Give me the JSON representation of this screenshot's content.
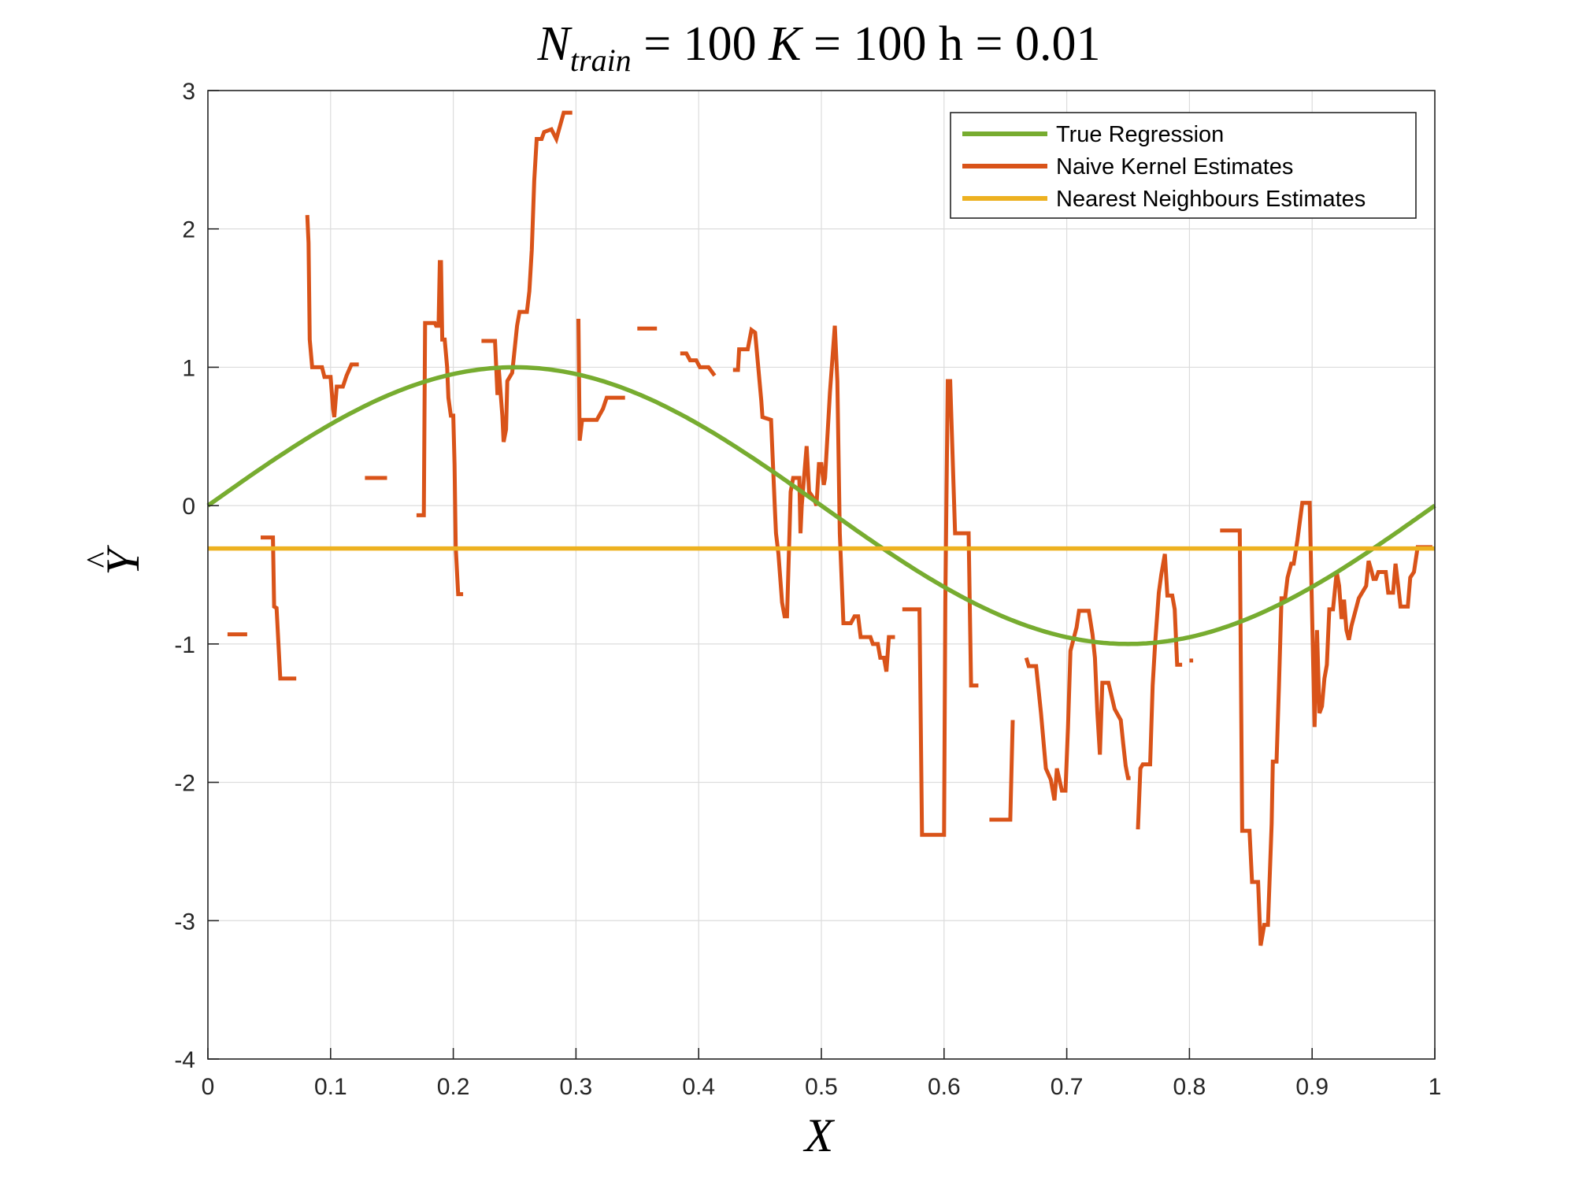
{
  "chart_data": {
    "type": "line",
    "title": {
      "N": "N",
      "sub": "train",
      "eq1": " = 100 ",
      "K": "K",
      "eq2": " = 100 h = 0.01"
    },
    "xlabel": "X",
    "ylabel": {
      "base": "Y",
      "accent": "^"
    },
    "xlim": [
      0,
      1
    ],
    "ylim": [
      -4,
      3
    ],
    "grid": true,
    "legend_position": "top-right",
    "xticks": [
      0,
      0.1,
      0.2,
      0.3,
      0.4,
      0.5,
      0.6,
      0.7,
      0.8,
      0.9,
      1
    ],
    "xtick_labels": [
      "0",
      "0.1",
      "0.2",
      "0.3",
      "0.4",
      "0.5",
      "0.6",
      "0.7",
      "0.8",
      "0.9",
      "1"
    ],
    "yticks": [
      -4,
      -3,
      -2,
      -1,
      0,
      1,
      2,
      3
    ],
    "ytick_labels": [
      "-4",
      "-3",
      "-2",
      "-1",
      "0",
      "1",
      "2",
      "3"
    ],
    "series": [
      {
        "name": "True Regression",
        "color": "#77AC30",
        "function": "sin(2*pi*x)",
        "x_range": [
          0,
          1
        ]
      },
      {
        "name": "Naive Kernel Estimates",
        "color": "#D95319",
        "segments": [
          [
            [
              0.016,
              -0.93
            ],
            [
              0.032,
              -0.93
            ]
          ],
          [
            [
              0.043,
              -0.23
            ],
            [
              0.053,
              -0.23
            ],
            [
              0.054,
              -0.73
            ],
            [
              0.056,
              -0.74
            ],
            [
              0.059,
              -1.25
            ],
            [
              0.072,
              -1.25
            ]
          ],
          [
            [
              0.081,
              2.1
            ],
            [
              0.082,
              1.9
            ],
            [
              0.083,
              1.2
            ],
            [
              0.085,
              1.0
            ],
            [
              0.093,
              1.0
            ],
            [
              0.095,
              0.93
            ],
            [
              0.1,
              0.93
            ],
            [
              0.102,
              0.7
            ],
            [
              0.103,
              0.64
            ],
            [
              0.105,
              0.86
            ],
            [
              0.11,
              0.86
            ],
            [
              0.113,
              0.94
            ],
            [
              0.117,
              1.02
            ],
            [
              0.123,
              1.02
            ]
          ],
          [
            [
              0.128,
              0.2
            ],
            [
              0.146,
              0.2
            ]
          ],
          [
            [
              0.17,
              -0.07
            ],
            [
              0.176,
              -0.07
            ],
            [
              0.177,
              1.32
            ],
            [
              0.185,
              1.32
            ],
            [
              0.186,
              1.3
            ],
            [
              0.188,
              1.3
            ],
            [
              0.189,
              1.76
            ],
            [
              0.19,
              1.76
            ],
            [
              0.191,
              1.2
            ],
            [
              0.193,
              1.2
            ],
            [
              0.195,
              1.0
            ],
            [
              0.196,
              0.78
            ],
            [
              0.198,
              0.65
            ],
            [
              0.2,
              0.65
            ],
            [
              0.201,
              0.3
            ],
            [
              0.202,
              -0.3
            ],
            [
              0.204,
              -0.64
            ],
            [
              0.208,
              -0.64
            ]
          ],
          [
            [
              0.223,
              1.19
            ],
            [
              0.234,
              1.19
            ],
            [
              0.236,
              0.8
            ],
            [
              0.237,
              1.0
            ],
            [
              0.24,
              0.65
            ],
            [
              0.241,
              0.46
            ],
            [
              0.243,
              0.55
            ],
            [
              0.244,
              0.9
            ],
            [
              0.248,
              0.96
            ],
            [
              0.252,
              1.3
            ],
            [
              0.254,
              1.4
            ],
            [
              0.26,
              1.4
            ],
            [
              0.262,
              1.55
            ],
            [
              0.264,
              1.85
            ],
            [
              0.266,
              2.35
            ],
            [
              0.268,
              2.65
            ],
            [
              0.272,
              2.65
            ],
            [
              0.274,
              2.7
            ],
            [
              0.28,
              2.72
            ],
            [
              0.284,
              2.65
            ],
            [
              0.29,
              2.84
            ],
            [
              0.297,
              2.84
            ]
          ],
          [
            [
              0.302,
              1.35
            ],
            [
              0.303,
              0.47
            ],
            [
              0.305,
              0.62
            ],
            [
              0.317,
              0.62
            ],
            [
              0.322,
              0.7
            ],
            [
              0.325,
              0.78
            ],
            [
              0.34,
              0.78
            ]
          ],
          [
            [
              0.35,
              1.28
            ],
            [
              0.366,
              1.28
            ]
          ],
          [
            [
              0.385,
              1.1
            ],
            [
              0.39,
              1.1
            ],
            [
              0.393,
              1.05
            ],
            [
              0.398,
              1.05
            ],
            [
              0.401,
              1.0
            ],
            [
              0.408,
              1.0
            ],
            [
              0.413,
              0.94
            ]
          ],
          [
            [
              0.428,
              0.98
            ],
            [
              0.432,
              0.98
            ],
            [
              0.433,
              1.13
            ],
            [
              0.44,
              1.13
            ],
            [
              0.443,
              1.27
            ],
            [
              0.446,
              1.25
            ],
            [
              0.451,
              0.76
            ],
            [
              0.452,
              0.64
            ],
            [
              0.459,
              0.62
            ],
            [
              0.462,
              0.0
            ],
            [
              0.463,
              -0.2
            ],
            [
              0.465,
              -0.35
            ],
            [
              0.468,
              -0.7
            ],
            [
              0.47,
              -0.8
            ],
            [
              0.472,
              -0.8
            ],
            [
              0.474,
              -0.2
            ],
            [
              0.475,
              0.1
            ],
            [
              0.477,
              0.2
            ],
            [
              0.482,
              0.2
            ],
            [
              0.483,
              -0.2
            ],
            [
              0.484,
              0.0
            ],
            [
              0.488,
              0.43
            ],
            [
              0.49,
              0.1
            ],
            [
              0.494,
              0.05
            ],
            [
              0.496,
              0.0
            ],
            [
              0.498,
              0.3
            ],
            [
              0.5,
              0.3
            ],
            [
              0.502,
              0.15
            ],
            [
              0.503,
              0.2
            ],
            [
              0.507,
              0.82
            ],
            [
              0.511,
              1.3
            ],
            [
              0.513,
              0.9
            ],
            [
              0.515,
              -0.2
            ],
            [
              0.518,
              -0.85
            ],
            [
              0.524,
              -0.85
            ],
            [
              0.527,
              -0.8
            ],
            [
              0.53,
              -0.8
            ],
            [
              0.532,
              -0.95
            ],
            [
              0.54,
              -0.95
            ],
            [
              0.542,
              -1.0
            ],
            [
              0.546,
              -1.0
            ],
            [
              0.548,
              -1.1
            ],
            [
              0.551,
              -1.1
            ],
            [
              0.553,
              -1.2
            ],
            [
              0.555,
              -0.95
            ],
            [
              0.56,
              -0.95
            ]
          ],
          [
            [
              0.566,
              -0.75
            ],
            [
              0.58,
              -0.75
            ],
            [
              0.582,
              -2.38
            ],
            [
              0.6,
              -2.38
            ],
            [
              0.601,
              -0.7
            ],
            [
              0.603,
              0.9
            ],
            [
              0.605,
              0.9
            ],
            [
              0.609,
              -0.2
            ],
            [
              0.62,
              -0.2
            ],
            [
              0.622,
              -1.3
            ],
            [
              0.628,
              -1.3
            ]
          ],
          [
            [
              0.637,
              -2.27
            ],
            [
              0.654,
              -2.27
            ],
            [
              0.656,
              -1.55
            ]
          ],
          [
            [
              0.667,
              -1.1
            ],
            [
              0.669,
              -1.16
            ],
            [
              0.675,
              -1.16
            ],
            [
              0.679,
              -1.5
            ],
            [
              0.683,
              -1.9
            ],
            [
              0.687,
              -1.98
            ],
            [
              0.69,
              -2.13
            ],
            [
              0.692,
              -1.9
            ],
            [
              0.696,
              -2.06
            ],
            [
              0.699,
              -2.06
            ],
            [
              0.701,
              -1.6
            ],
            [
              0.703,
              -1.05
            ],
            [
              0.708,
              -0.88
            ],
            [
              0.71,
              -0.76
            ],
            [
              0.718,
              -0.76
            ],
            [
              0.721,
              -0.93
            ],
            [
              0.723,
              -1.1
            ],
            [
              0.725,
              -1.5
            ],
            [
              0.727,
              -1.8
            ],
            [
              0.729,
              -1.28
            ],
            [
              0.734,
              -1.28
            ],
            [
              0.739,
              -1.47
            ],
            [
              0.744,
              -1.55
            ],
            [
              0.746,
              -1.72
            ],
            [
              0.748,
              -1.88
            ],
            [
              0.75,
              -1.97
            ],
            [
              0.752,
              -1.97
            ]
          ],
          [
            [
              0.758,
              -2.34
            ],
            [
              0.76,
              -1.9
            ],
            [
              0.762,
              -1.87
            ],
            [
              0.768,
              -1.87
            ],
            [
              0.77,
              -1.3
            ],
            [
              0.772,
              -1.0
            ],
            [
              0.775,
              -0.63
            ],
            [
              0.777,
              -0.5
            ],
            [
              0.78,
              -0.35
            ],
            [
              0.782,
              -0.65
            ],
            [
              0.786,
              -0.65
            ],
            [
              0.788,
              -0.75
            ],
            [
              0.79,
              -1.15
            ],
            [
              0.794,
              -1.15
            ]
          ],
          [
            [
              0.8,
              -1.12
            ],
            [
              0.803,
              -1.12
            ]
          ],
          [
            [
              0.825,
              -0.18
            ],
            [
              0.841,
              -0.18
            ],
            [
              0.843,
              -2.35
            ],
            [
              0.849,
              -2.35
            ],
            [
              0.851,
              -2.72
            ],
            [
              0.856,
              -2.72
            ],
            [
              0.858,
              -3.18
            ],
            [
              0.861,
              -3.03
            ],
            [
              0.864,
              -3.03
            ],
            [
              0.867,
              -2.3
            ],
            [
              0.868,
              -1.85
            ],
            [
              0.871,
              -1.85
            ],
            [
              0.873,
              -1.3
            ],
            [
              0.875,
              -0.67
            ],
            [
              0.878,
              -0.67
            ],
            [
              0.88,
              -0.52
            ],
            [
              0.883,
              -0.42
            ],
            [
              0.885,
              -0.42
            ],
            [
              0.888,
              -0.25
            ],
            [
              0.892,
              0.02
            ],
            [
              0.898,
              0.02
            ],
            [
              0.9,
              -0.8
            ],
            [
              0.902,
              -1.6
            ],
            [
              0.904,
              -0.9
            ],
            [
              0.906,
              -1.5
            ],
            [
              0.908,
              -1.45
            ],
            [
              0.91,
              -1.25
            ],
            [
              0.912,
              -1.15
            ],
            [
              0.914,
              -0.75
            ],
            [
              0.917,
              -0.75
            ],
            [
              0.92,
              -0.48
            ],
            [
              0.922,
              -0.58
            ],
            [
              0.924,
              -0.82
            ],
            [
              0.926,
              -0.68
            ],
            [
              0.928,
              -0.9
            ],
            [
              0.93,
              -0.97
            ],
            [
              0.932,
              -0.87
            ],
            [
              0.938,
              -0.67
            ],
            [
              0.944,
              -0.58
            ],
            [
              0.946,
              -0.4
            ],
            [
              0.948,
              -0.46
            ],
            [
              0.95,
              -0.53
            ],
            [
              0.952,
              -0.53
            ],
            [
              0.954,
              -0.48
            ],
            [
              0.96,
              -0.48
            ],
            [
              0.962,
              -0.63
            ],
            [
              0.966,
              -0.63
            ],
            [
              0.968,
              -0.42
            ],
            [
              0.97,
              -0.57
            ],
            [
              0.972,
              -0.73
            ],
            [
              0.978,
              -0.73
            ],
            [
              0.98,
              -0.52
            ],
            [
              0.983,
              -0.48
            ],
            [
              0.986,
              -0.3
            ],
            [
              0.998,
              -0.3
            ]
          ]
        ]
      },
      {
        "name": "Nearest Neighbours Estimates",
        "color": "#EDB120",
        "x": [
          0,
          1
        ],
        "y": [
          -0.31,
          -0.31
        ]
      }
    ]
  }
}
